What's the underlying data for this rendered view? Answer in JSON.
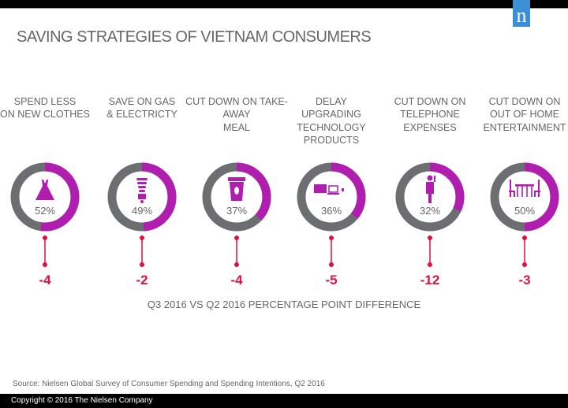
{
  "header": {
    "logo": "n",
    "title": "SAVING STRATEGIES OF VIETNAM CONSUMERS"
  },
  "colors": {
    "accent": "#b01eaf",
    "remainder": "#6d6e71",
    "change": "#e0103a"
  },
  "chart_data": {
    "type": "donut",
    "title": "SAVING STRATEGIES OF VIETNAM CONSUMERS",
    "items": [
      {
        "label": "SPEND LESS\nON NEW CLOTHES",
        "value": 52,
        "display": "52%",
        "change": -4,
        "change_label": "-4",
        "icon": "dress-icon"
      },
      {
        "label": "SAVE ON GAS\n& ELECTRICTY",
        "value": 49,
        "display": "49%",
        "change": -2,
        "change_label": "-2",
        "icon": "lightbulb-icon"
      },
      {
        "label": "CUT DOWN ON TAKE-\nAWAY\nMEAL",
        "value": 37,
        "display": "37%",
        "change": -4,
        "change_label": "-4",
        "icon": "coffee-cup-icon"
      },
      {
        "label": "DELAY\nUPGRADING\nTECHNOLOGY\nPRODUCTS",
        "value": 36,
        "display": "36%",
        "change": -5,
        "change_label": "-5",
        "icon": "devices-icon"
      },
      {
        "label": "CUT DOWN ON\nTELEPHONE\nEXPENSES",
        "value": 32,
        "display": "32%",
        "change": -12,
        "change_label": "-12",
        "icon": "person-phone-icon"
      },
      {
        "label": "CUT DOWN ON\nOUT OF HOME\nENTERTAINMENT",
        "value": 50,
        "display": "50%",
        "change": -3,
        "change_label": "-3",
        "icon": "dining-table-icon"
      }
    ],
    "change_caption": "Q3 2016 VS Q2 2016 PERCENTAGE  POINT DIFFERENCE"
  },
  "footer": {
    "source": "Source: Nielsen Global Survey of Consumer Spending and Spending Intentions, Q2 2016",
    "copyright": "Copyright © 2016  The Nielsen Company"
  }
}
